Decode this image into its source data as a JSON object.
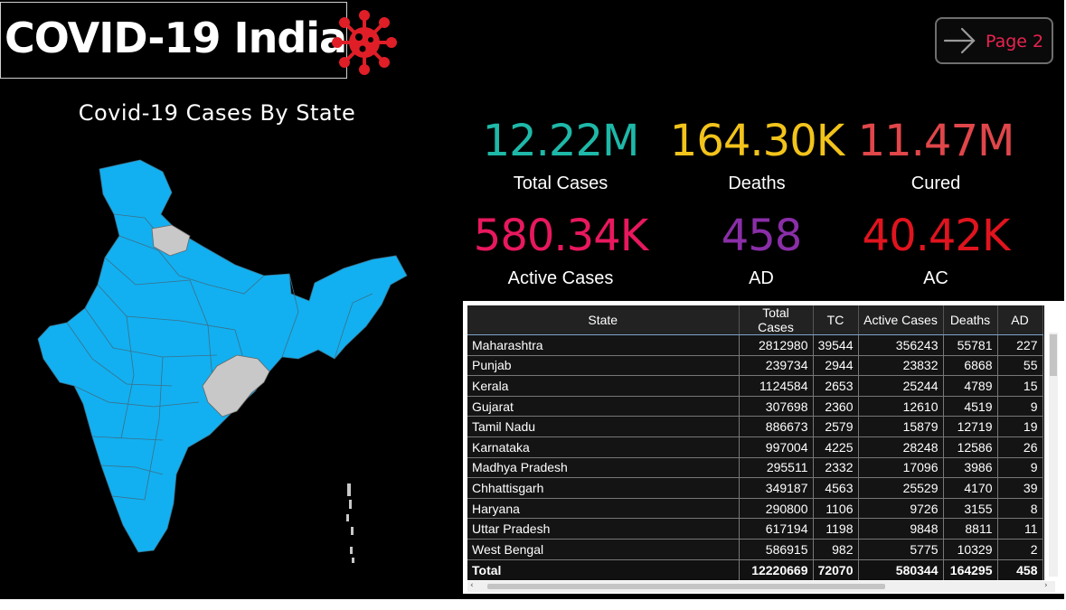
{
  "header": {
    "title": "COVID-19 India",
    "icon": "virus-icon",
    "accent": "#e01e27",
    "page_button": "Page 2"
  },
  "map": {
    "title": "Covid-19 Cases By State",
    "fill_color": "#12b0f0",
    "no_data_color": "#c8c8c8"
  },
  "kpis": [
    {
      "value": "12.22M",
      "label": "Total Cases",
      "color": "#1eb8a8"
    },
    {
      "value": "164.30K",
      "label": "Deaths",
      "color": "#f2c31b"
    },
    {
      "value": "11.47M",
      "label": "Cured",
      "color": "#e0464a"
    },
    {
      "value": "580.34K",
      "label": "Active Cases",
      "color": "#e8185e"
    },
    {
      "value": "458",
      "label": "AD",
      "color": "#8a2ea8"
    },
    {
      "value": "40.42K",
      "label": "AC",
      "color": "#e0141e"
    }
  ],
  "table": {
    "columns": [
      "State",
      "Total Cases",
      "TC",
      "Active Cases",
      "Deaths",
      "AD"
    ],
    "rows": [
      [
        "Maharashtra",
        "2812980",
        "39544",
        "356243",
        "55781",
        "227"
      ],
      [
        "Punjab",
        "239734",
        "2944",
        "23832",
        "6868",
        "55"
      ],
      [
        "Kerala",
        "1124584",
        "2653",
        "25244",
        "4789",
        "15"
      ],
      [
        "Gujarat",
        "307698",
        "2360",
        "12610",
        "4519",
        "9"
      ],
      [
        "Tamil Nadu",
        "886673",
        "2579",
        "15879",
        "12719",
        "19"
      ],
      [
        "Karnataka",
        "997004",
        "4225",
        "28248",
        "12586",
        "26"
      ],
      [
        "Madhya Pradesh",
        "295511",
        "2332",
        "17096",
        "3986",
        "9"
      ],
      [
        "Chhattisgarh",
        "349187",
        "4563",
        "25529",
        "4170",
        "39"
      ],
      [
        "Haryana",
        "290800",
        "1106",
        "9726",
        "3155",
        "8"
      ],
      [
        "Uttar Pradesh",
        "617194",
        "1198",
        "9848",
        "8811",
        "11"
      ],
      [
        "West Bengal",
        "586915",
        "982",
        "5775",
        "10329",
        "2"
      ]
    ],
    "total": [
      "Total",
      "12220669",
      "72070",
      "580344",
      "164295",
      "458"
    ]
  }
}
